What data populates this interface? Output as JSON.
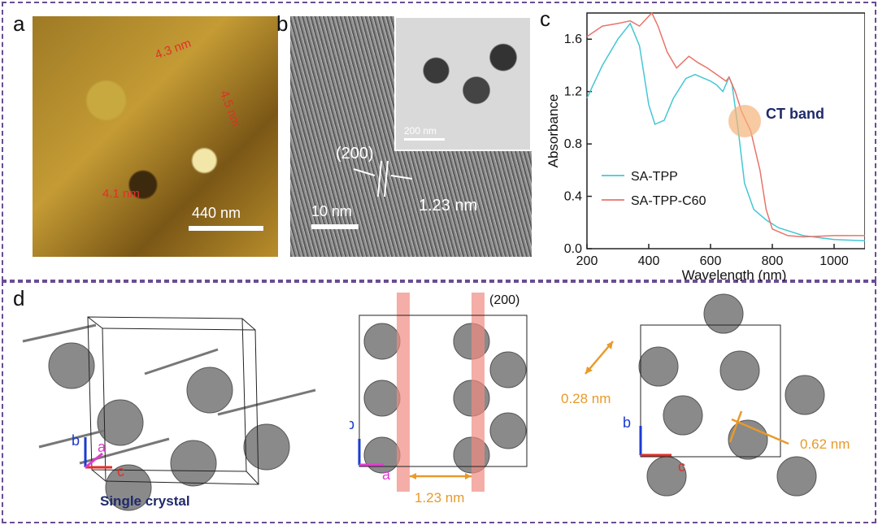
{
  "panels": {
    "a": {
      "label": "a",
      "scale_bar": "440 nm",
      "heights": [
        "4.3 nm",
        "4.5 nm",
        "4.1 nm"
      ]
    },
    "b": {
      "label": "b",
      "scale_bar": "10 nm",
      "plane": "(200)",
      "spacing": "1.23 nm",
      "inset_scale_bar": "200 nm"
    },
    "c": {
      "label": "c",
      "annotation": "CT band"
    },
    "d": {
      "label": "d",
      "caption": "Single crystal",
      "plane": "(200)",
      "spacing_middle": "1.23 nm",
      "distance_1": "0.28 nm",
      "distance_2": "0.62 nm",
      "axis_b": "b",
      "axis_a": "a",
      "axis_c": "c"
    }
  },
  "chart_data": {
    "type": "line",
    "xlabel": "Wavelength (nm)",
    "ylabel": "Absorbance",
    "xlim": [
      200,
      1100
    ],
    "ylim": [
      0,
      1.8
    ],
    "xticks": [
      200,
      400,
      600,
      800,
      1000
    ],
    "yticks": [
      0.0,
      0.4,
      0.8,
      1.2,
      1.6
    ],
    "legend_position": "bottom-left",
    "series": [
      {
        "name": "SA-TPP",
        "color": "#45c7d3",
        "points": [
          [
            200,
            1.15
          ],
          [
            250,
            1.4
          ],
          [
            300,
            1.6
          ],
          [
            340,
            1.72
          ],
          [
            370,
            1.55
          ],
          [
            400,
            1.1
          ],
          [
            420,
            0.95
          ],
          [
            450,
            0.98
          ],
          [
            480,
            1.15
          ],
          [
            520,
            1.3
          ],
          [
            550,
            1.33
          ],
          [
            580,
            1.3
          ],
          [
            600,
            1.28
          ],
          [
            620,
            1.25
          ],
          [
            640,
            1.2
          ],
          [
            660,
            1.31
          ],
          [
            670,
            1.25
          ],
          [
            690,
            0.9
          ],
          [
            710,
            0.5
          ],
          [
            740,
            0.3
          ],
          [
            780,
            0.22
          ],
          [
            820,
            0.16
          ],
          [
            900,
            0.1
          ],
          [
            1000,
            0.07
          ],
          [
            1100,
            0.06
          ]
        ]
      },
      {
        "name": "SA-TPP-C60",
        "color": "#e8746a",
        "points": [
          [
            200,
            1.62
          ],
          [
            250,
            1.7
          ],
          [
            300,
            1.72
          ],
          [
            340,
            1.74
          ],
          [
            370,
            1.7
          ],
          [
            410,
            1.8
          ],
          [
            430,
            1.7
          ],
          [
            460,
            1.5
          ],
          [
            490,
            1.38
          ],
          [
            530,
            1.47
          ],
          [
            560,
            1.42
          ],
          [
            590,
            1.38
          ],
          [
            620,
            1.33
          ],
          [
            650,
            1.28
          ],
          [
            660,
            1.31
          ],
          [
            680,
            1.2
          ],
          [
            700,
            1.05
          ],
          [
            730,
            0.9
          ],
          [
            760,
            0.6
          ],
          [
            780,
            0.3
          ],
          [
            800,
            0.15
          ],
          [
            850,
            0.1
          ],
          [
            900,
            0.09
          ],
          [
            1000,
            0.1
          ],
          [
            1100,
            0.1
          ]
        ]
      }
    ]
  }
}
